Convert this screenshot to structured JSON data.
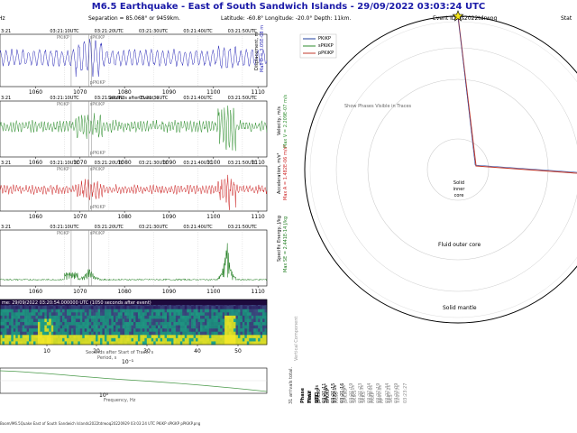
{
  "header": {
    "title": "M6.5 Earthquake - East of South Sandwich Islands -  29/09/2022 03:03:24 UTC",
    "separation": "Separation = 85.068° or 9459km.",
    "location": "Latitude: -60.8° Longitude: -20.0° Depth: 11km.",
    "event_id": "Event ID: rs2022tdrwoq",
    "hz_fragment": "Hz",
    "stat_fragment": "Stat"
  },
  "traces": {
    "time_ticks": [
      "03:21:10UTC",
      "03:21:20UTC",
      "03:21:30UTC",
      "03:21:40UTC",
      "03:21:50UTC"
    ],
    "seconds_ticks": [
      "1060",
      "1070",
      "1080",
      "1090",
      "1100",
      "1110"
    ],
    "time_ticks_short": [
      "3:21:00",
      "3:21:00",
      "3:21:00"
    ],
    "xlabel": "Seconds after Event, s",
    "phase_labels": [
      "PKiKP",
      "sPKiKP",
      "pPKiKP"
    ],
    "disp": {
      "ylabel": "Displacement, m",
      "max_label": "Max D = 3.05E-08 m",
      "color": "#2a2ab8"
    },
    "vel": {
      "ylabel": "Velocity, m/s",
      "max_label": "Max V = 2.209E-07 m/s",
      "color": "#2f8f2f"
    },
    "acc": {
      "ylabel": "Acceleration, m/s²",
      "max_label": "Max A = 1.482E-06 m/s²",
      "color": "#cc2222"
    },
    "energy": {
      "ylabel": "Specific Energy, J/kg",
      "max_label": "Max SE = 2.441E-14 J/kg",
      "color": "#1a7a1a"
    }
  },
  "spectrogram": {
    "title": "me: 29/09/2022 03:20:54.000000 UTC (1050 seconds after event)",
    "xticks": [
      "10",
      "20",
      "30",
      "40",
      "50"
    ],
    "xlabel": "Seconds after Start of Trace, s",
    "period_label": "Period, s",
    "period_tick": "10⁻¹"
  },
  "spectrum": {
    "xlabel": "Frequency, Hz",
    "xtick": "10⁰"
  },
  "footer": {
    "filename": "Boom/M6.5Quake East of South Sandwich Islands2022tdrwoq20220929 03:03:24 UTC PKiKP sPKiKP pPKiKP.png"
  },
  "earth": {
    "legend": [
      "PKiKP",
      "sPKiKP",
      "pPKiKP"
    ],
    "legend_colors": [
      "#1f3f9f",
      "#2e8b2e",
      "#c0392b"
    ],
    "show_phases_text": "Show Phases Visible in Traces",
    "inner_core": "Solid\ninner\ncore",
    "inner_core_lines": [
      "Solid",
      "inner",
      "core"
    ],
    "outer_core": "Fluid outer core",
    "mantle": "Solid mantle"
  },
  "phase_table": {
    "title": "31 arrivals total.",
    "vertical_note": "Vertical Component",
    "header": [
      "Phase",
      "Time",
      "UTC"
    ],
    "phases": [
      "PKiKP",
      "pPKiKP",
      "sPKiKP",
      "PKIKP",
      "pPKIKP",
      "SKIKS",
      "SKKS",
      "PKKP",
      "PP",
      "SKS"
    ],
    "times": [
      "1067.3s",
      "1071.5s",
      "1072.1s",
      "1075.0s",
      "1079.1s",
      "1120.3s",
      "1135.6s",
      "1160.8s",
      "1185.2s",
      "1203.7s"
    ],
    "utcs": [
      "03:21:11",
      "03:21:15",
      "03:21:16",
      "03:21:19",
      "03:21:23",
      "03:22:04",
      "03:22:19",
      "03:22:44",
      "03:23:09",
      "03:23:27"
    ]
  }
}
